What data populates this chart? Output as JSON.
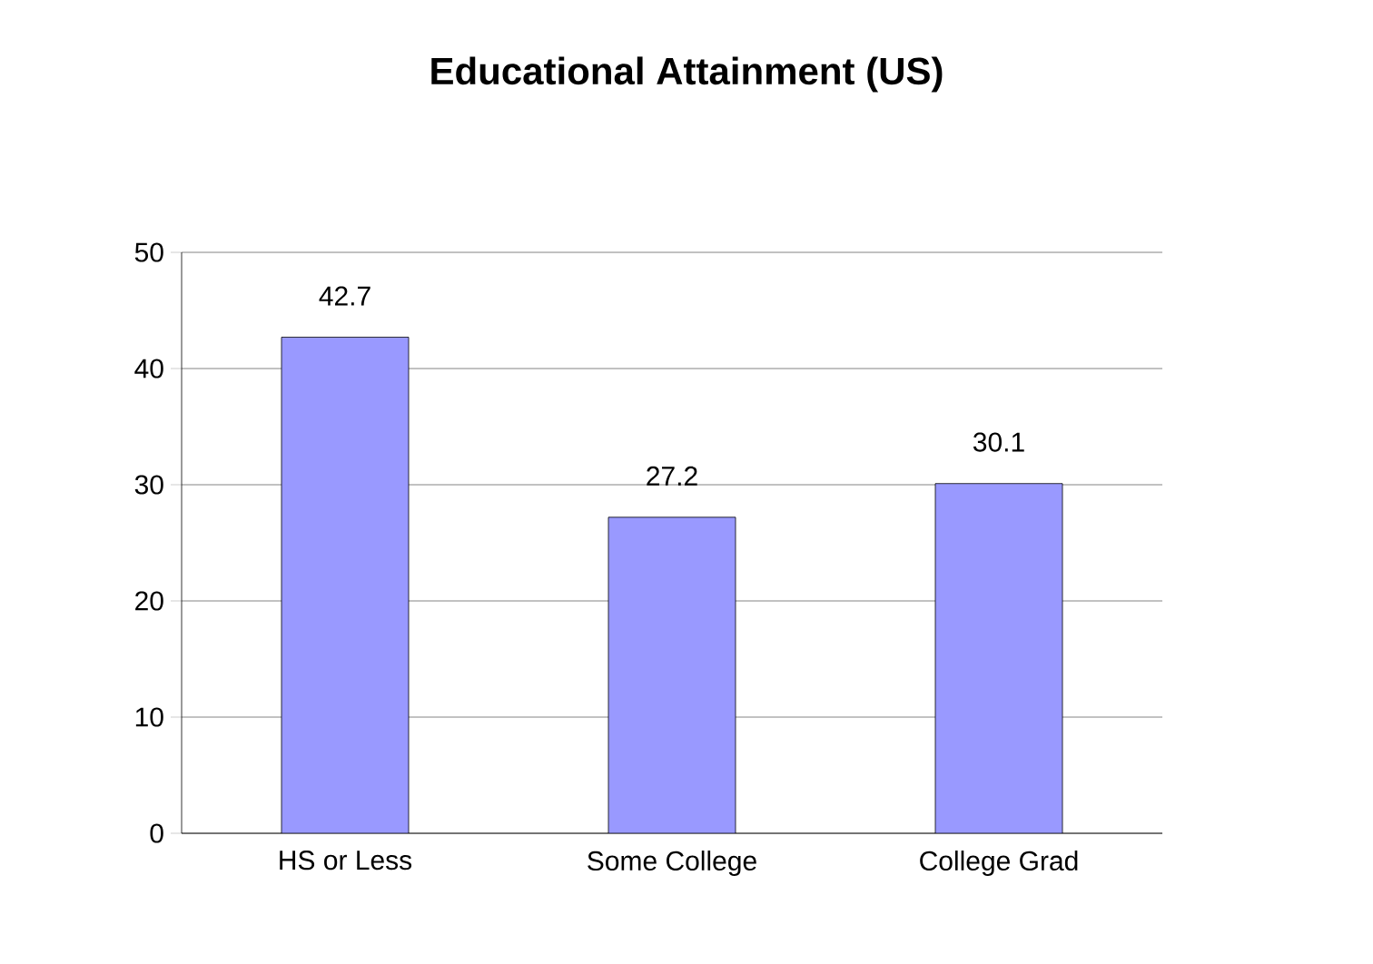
{
  "chart_data": {
    "type": "bar",
    "title": "Educational Attainment (US)",
    "categories": [
      "HS or Less",
      "Some College",
      "College Grad"
    ],
    "values": [
      42.7,
      27.2,
      30.1
    ],
    "color": "#9999ff",
    "ylim": [
      0,
      50
    ],
    "yticks": [
      0,
      10,
      20,
      30,
      40,
      50
    ],
    "grid": "y",
    "data_labels": true
  }
}
